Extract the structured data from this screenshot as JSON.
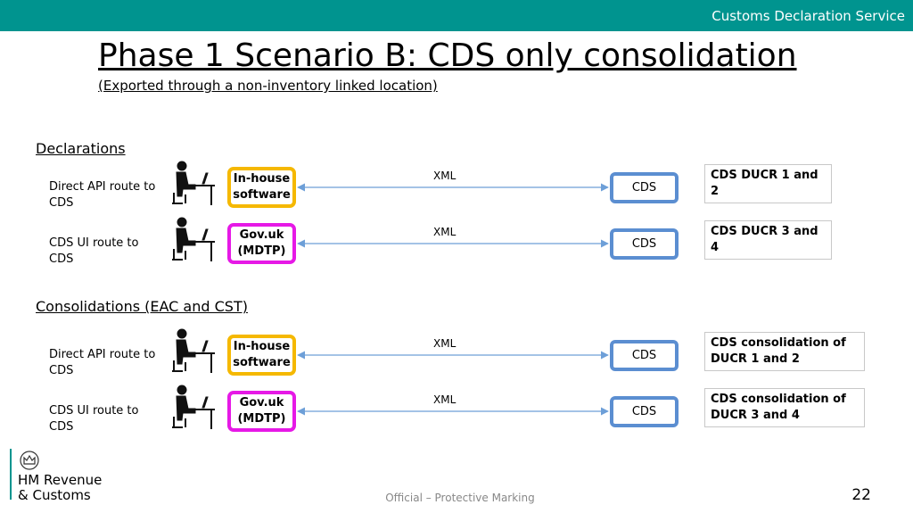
{
  "header": {
    "service": "Customs Declaration Service"
  },
  "title": "Phase 1 Scenario B: CDS only consolidation",
  "subtitle": "(Exported through a non-inventory linked location)",
  "sections": [
    {
      "heading": "Declarations",
      "rows": [
        {
          "route": "Direct API route to CDS",
          "software": "In-house software",
          "protocol": "XML",
          "system": "CDS",
          "result": "CDS DUCR 1 and 2"
        },
        {
          "route": "CDS UI route to CDS",
          "software": "Gov.uk (MDTP)",
          "protocol": "XML",
          "system": "CDS",
          "result": "CDS DUCR 3 and 4"
        }
      ]
    },
    {
      "heading": "Consolidations (EAC and CST)",
      "rows": [
        {
          "route": "Direct API route to CDS",
          "software": "In-house software",
          "protocol": "XML",
          "system": "CDS",
          "result": "CDS consolidation of DUCR 1 and 2"
        },
        {
          "route": "CDS UI route to CDS",
          "software": "Gov.uk (MDTP)",
          "protocol": "XML",
          "system": "CDS",
          "result": "CDS consolidation of DUCR 3 and 4"
        }
      ]
    }
  ],
  "footer": {
    "logo_line1": "HM Revenue",
    "logo_line2": "& Customs",
    "marking": "Official – Protective Marking",
    "page": "22"
  }
}
